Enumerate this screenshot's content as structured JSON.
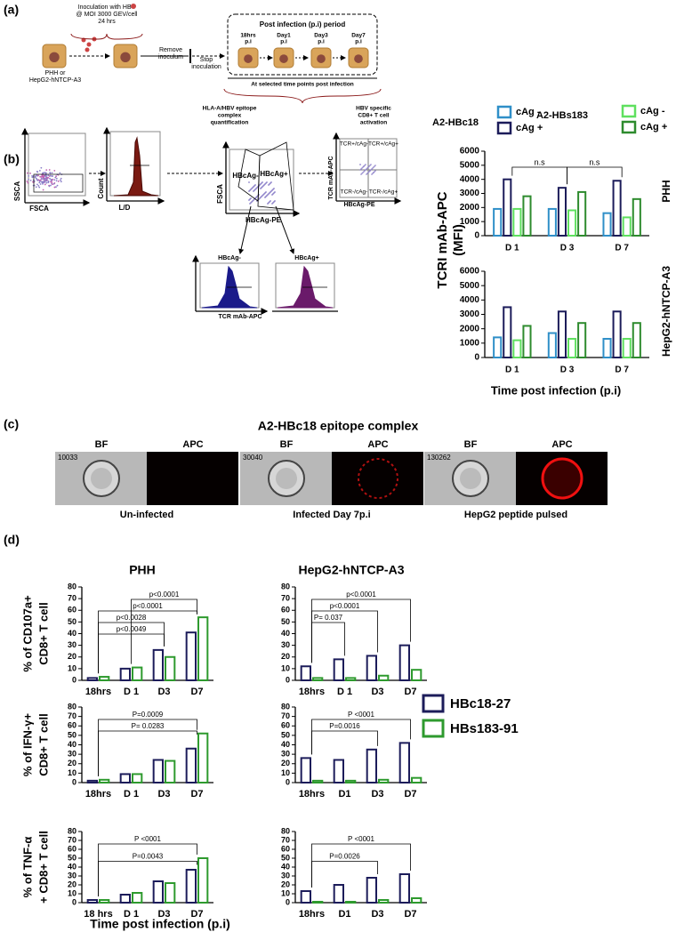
{
  "panel_labels": [
    "(a)",
    "(b)",
    "(c)",
    "(d)"
  ],
  "schematic": {
    "inoculation": [
      "Inoculation with HBV",
      "@ MOI 3000 GEV/cell",
      "24 hrs"
    ],
    "cells": [
      "PHH or",
      "HepG2-hNTCP-A3"
    ],
    "remove": [
      "Remove",
      "inoculum"
    ],
    "stop": [
      "Stop",
      "inoculation"
    ],
    "period_title": "Post infection (p.i) period",
    "timepoints": [
      [
        "18hrs",
        "p.i"
      ],
      [
        "Day1",
        "p.i"
      ],
      [
        "Day3",
        "p.i"
      ],
      [
        "Day7",
        "p.i"
      ]
    ],
    "selected": "At selected time points post infection",
    "readouts": [
      [
        "HLA-A/HBV epitope",
        "complex",
        "quantification"
      ],
      [
        "HBV specific",
        "CD8+ T cell",
        "activation"
      ]
    ]
  },
  "flow": {
    "plots": [
      {
        "y": "SSCA",
        "x": "FSCA"
      },
      {
        "y": "Count",
        "x": "L/D"
      },
      {
        "y": "FSCA",
        "x": "HBcAg-PE",
        "gates": [
          "HBcAg-",
          "HBcAg+"
        ]
      },
      {
        "y": "TCR mAb-APC",
        "x": "HBcAg-PE",
        "quadrants": [
          "TCR+/cAg-",
          "TCR+/cAg+",
          "TCR-/cAg-",
          "TCR-/cAg+"
        ]
      }
    ],
    "histograms": {
      "titles": [
        "HBcAg-",
        "HBcAg+"
      ],
      "x": "TCR mAb-APC"
    }
  },
  "imaging": {
    "title": "A2-HBc18 epitope complex",
    "panels": [
      {
        "id": "10033",
        "channels": [
          "BF",
          "APC"
        ],
        "caption": "Un-infected"
      },
      {
        "id": "30040",
        "channels": [
          "BF",
          "APC"
        ],
        "caption": "Infected Day 7p.i"
      },
      {
        "id": "130262",
        "channels": [
          "BF",
          "APC"
        ],
        "caption": "HepG2 peptide pulsed"
      }
    ]
  },
  "chart_data": [
    {
      "type": "bar",
      "side_label": "PHH",
      "ylabel": [
        "TCRI mAb-APC",
        "(MFI)"
      ],
      "legend_groups": [
        "A2-HBc18",
        "A2-HBs183"
      ],
      "categories": [
        "D 1",
        "D 3",
        "D 7"
      ],
      "series": [
        {
          "name": "cAg -",
          "color": "#2f8fc8",
          "values": [
            1900,
            1900,
            1600
          ]
        },
        {
          "name": "cAg +",
          "color": "#1c1c5a",
          "values": [
            4000,
            3400,
            3900
          ]
        },
        {
          "name": "cAg -",
          "color": "#5fe05f",
          "values": [
            1900,
            1800,
            1300
          ]
        },
        {
          "name": "cAg +",
          "color": "#2e8b2e",
          "values": [
            2800,
            3100,
            2600
          ]
        }
      ],
      "ylim": [
        0,
        6000
      ],
      "yticks": [
        0,
        1000,
        2000,
        3000,
        4000,
        5000,
        6000
      ],
      "annotations": [
        "n.s",
        "n.s"
      ]
    },
    {
      "type": "bar",
      "side_label": "HepG2-hNTCP-A3",
      "xlabel": "Time post infection (p.i)",
      "categories": [
        "D 1",
        "D 3",
        "D 7"
      ],
      "series": [
        {
          "color": "#2f8fc8",
          "values": [
            1400,
            1700,
            1300
          ]
        },
        {
          "color": "#1c1c5a",
          "values": [
            3500,
            3200,
            3200
          ]
        },
        {
          "color": "#5fe05f",
          "values": [
            1200,
            1300,
            1300
          ]
        },
        {
          "color": "#2e8b2e",
          "values": [
            2200,
            2400,
            2400
          ]
        }
      ],
      "ylim": [
        0,
        6000
      ],
      "yticks": [
        0,
        1000,
        2000,
        3000,
        4000,
        5000,
        6000
      ]
    },
    {
      "type": "bar",
      "title": "PHH",
      "ylabel": [
        "% of CD107a+",
        "CD8+ T cell"
      ],
      "categories": [
        "18hrs",
        "D 1",
        "D3",
        "D7"
      ],
      "series": [
        {
          "name": "HBc18-27",
          "color": "#1c1c5a",
          "values": [
            2,
            10,
            26,
            41
          ]
        },
        {
          "name": "HBs183-91",
          "color": "#2e9a2e",
          "values": [
            3,
            11,
            20,
            54
          ]
        }
      ],
      "ylim": [
        0,
        80
      ],
      "yticks": [
        0,
        10,
        20,
        30,
        40,
        50,
        60,
        70,
        80
      ],
      "annotations": [
        "p<0.0001",
        "p<0.0001",
        "p<0.0028",
        "p<0.0049"
      ]
    },
    {
      "type": "bar",
      "title": "HepG2-hNTCP-A3",
      "categories": [
        "18hrs",
        "D 1",
        "D3",
        "D7"
      ],
      "series": [
        {
          "color": "#1c1c5a",
          "values": [
            12,
            18,
            21,
            30
          ]
        },
        {
          "color": "#2e9a2e",
          "values": [
            2,
            2,
            4,
            9
          ]
        }
      ],
      "ylim": [
        0,
        80
      ],
      "yticks": [
        0,
        10,
        20,
        30,
        40,
        50,
        60,
        70,
        80
      ],
      "annotations": [
        "p<0.0001",
        "p<0.0001",
        "P= 0.037"
      ]
    },
    {
      "type": "bar",
      "ylabel": [
        "% of IFN-γ+",
        "CD8+ T cell"
      ],
      "categories": [
        "18hrs",
        "D 1",
        "D3",
        "D7"
      ],
      "series": [
        {
          "color": "#1c1c5a",
          "values": [
            2,
            9,
            24,
            36
          ]
        },
        {
          "color": "#2e9a2e",
          "values": [
            3,
            9,
            23,
            52
          ]
        }
      ],
      "ylim": [
        0,
        80
      ],
      "yticks": [
        0,
        10,
        20,
        30,
        40,
        50,
        60,
        70,
        80
      ],
      "annotations": [
        "P=0.0009",
        "P= 0.0283"
      ]
    },
    {
      "type": "bar",
      "categories": [
        "18hrs",
        "D1",
        "D3",
        "D7"
      ],
      "series": [
        {
          "color": "#1c1c5a",
          "values": [
            26,
            24,
            35,
            42
          ]
        },
        {
          "color": "#2e9a2e",
          "values": [
            2,
            2,
            3,
            5
          ]
        }
      ],
      "ylim": [
        0,
        80
      ],
      "yticks": [
        0,
        10,
        20,
        30,
        40,
        50,
        60,
        70,
        80
      ],
      "annotations": [
        "P <0001",
        "P=0.0016"
      ]
    },
    {
      "type": "bar",
      "ylabel": [
        "% of TNF-α",
        "+ CD8+ T cell"
      ],
      "xlabel": "Time post infection (p.i)",
      "categories": [
        "18 hrs",
        "D 1",
        "D3",
        "D7"
      ],
      "series": [
        {
          "color": "#1c1c5a",
          "values": [
            3,
            9,
            24,
            37
          ]
        },
        {
          "color": "#2e9a2e",
          "values": [
            3,
            11,
            22,
            50
          ]
        }
      ],
      "ylim": [
        0,
        80
      ],
      "yticks": [
        0,
        10,
        20,
        30,
        40,
        50,
        60,
        70,
        80
      ],
      "annotations": [
        "P <0001",
        "P=0.0043"
      ]
    },
    {
      "type": "bar",
      "categories": [
        "18hrs",
        "D1",
        "D3",
        "D7"
      ],
      "series": [
        {
          "color": "#1c1c5a",
          "values": [
            13,
            20,
            28,
            32
          ]
        },
        {
          "color": "#2e9a2e",
          "values": [
            1,
            1,
            3,
            5
          ]
        }
      ],
      "ylim": [
        0,
        80
      ],
      "yticks": [
        0,
        10,
        20,
        30,
        40,
        50,
        60,
        70,
        80
      ],
      "annotations": [
        "P <0001",
        "P=0.0026"
      ]
    }
  ]
}
